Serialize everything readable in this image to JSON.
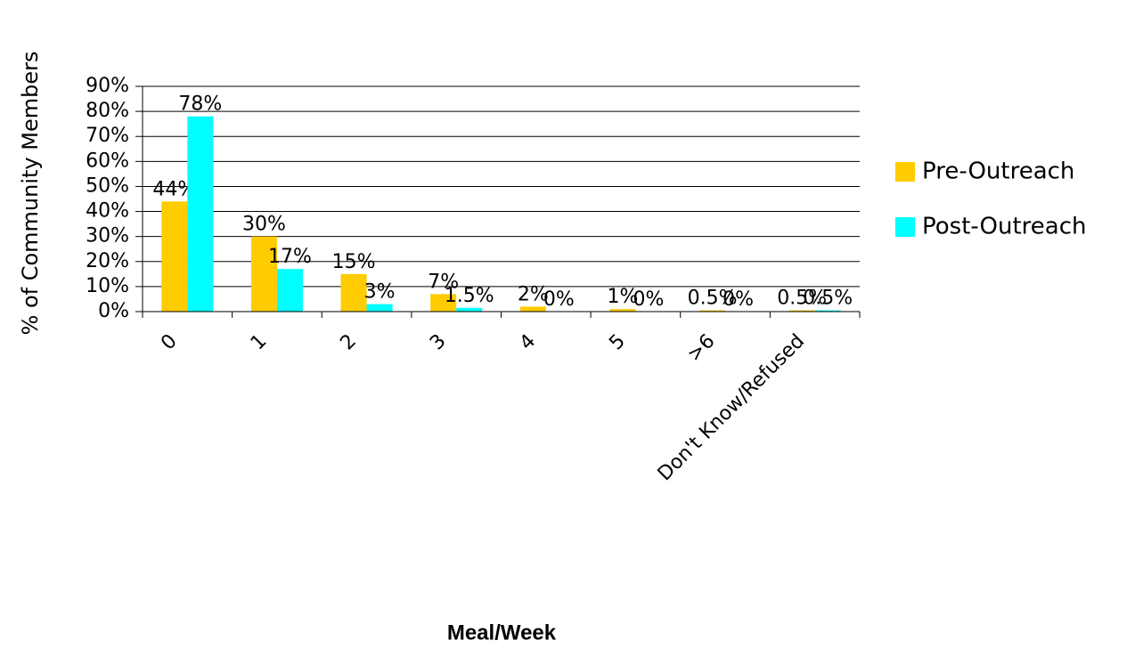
{
  "chart_data": {
    "type": "bar",
    "x_label": "Meal/Week",
    "y_label": "% of Community Members",
    "categories": [
      "0",
      "1",
      "2",
      "3",
      "4",
      "5",
      ">6",
      "Don't Know/Refused"
    ],
    "series": [
      {
        "name": "Pre-Outreach",
        "color": "#ffcc00",
        "values": [
          44,
          30,
          15,
          7,
          2,
          1,
          0.5,
          0.5
        ],
        "value_labels": [
          "44%",
          "30%",
          "15%",
          "7%",
          "2%",
          "1%",
          "0.5%",
          "0.5%"
        ]
      },
      {
        "name": "Post-Outreach",
        "color": "#00ffff",
        "values": [
          78,
          17,
          3,
          1.5,
          0,
          0,
          0,
          0.5
        ],
        "value_labels": [
          "78%",
          "17%",
          "3%",
          "1.5%",
          "0%",
          "0%",
          "0%",
          "0.5%"
        ]
      }
    ],
    "ylim": [
      0,
      90
    ],
    "yticks": [
      {
        "value": 0,
        "label": "0%"
      },
      {
        "value": 10,
        "label": "10%"
      },
      {
        "value": 20,
        "label": "20%"
      },
      {
        "value": 30,
        "label": "30%"
      },
      {
        "value": 40,
        "label": "40%"
      },
      {
        "value": 50,
        "label": "50%"
      },
      {
        "value": 60,
        "label": "60%"
      },
      {
        "value": 70,
        "label": "70%"
      },
      {
        "value": 80,
        "label": "80%"
      },
      {
        "value": 90,
        "label": "90%"
      }
    ],
    "grid": true,
    "legend": "right"
  }
}
